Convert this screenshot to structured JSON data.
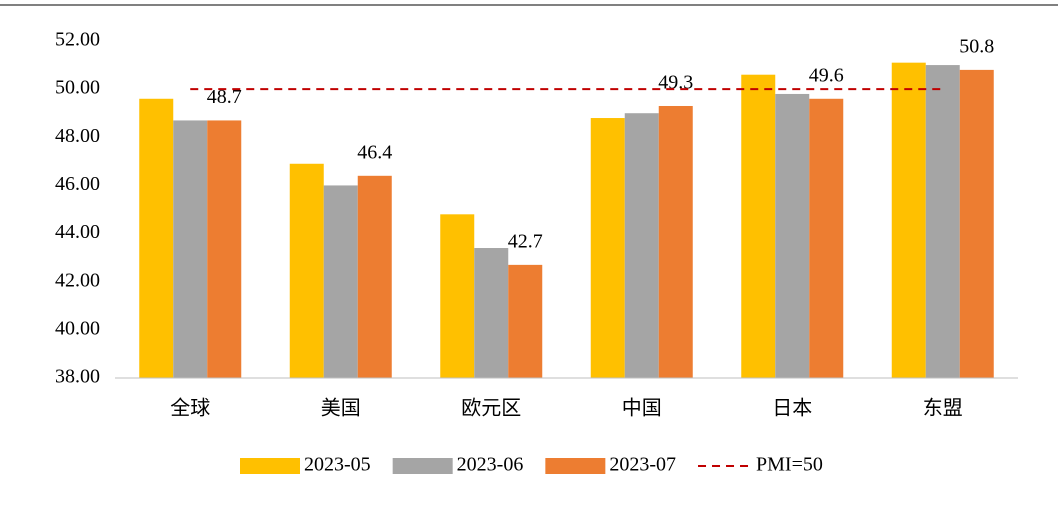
{
  "chart_data": {
    "type": "bar",
    "categories": [
      "全球",
      "美国",
      "欧元区",
      "中国",
      "日本",
      "东盟"
    ],
    "series": [
      {
        "name": "2023-05",
        "color": "#ffc000",
        "values": [
          49.6,
          46.9,
          44.8,
          48.8,
          50.6,
          51.1
        ]
      },
      {
        "name": "2023-06",
        "color": "#a5a5a5",
        "values": [
          48.7,
          46.0,
          43.4,
          49.0,
          49.8,
          51.0
        ]
      },
      {
        "name": "2023-07",
        "color": "#ed7d31",
        "values": [
          48.7,
          46.4,
          42.7,
          49.3,
          49.6,
          50.8
        ],
        "data_labels": true
      }
    ],
    "reference_lines": [
      {
        "name": "PMI=50",
        "value": 50,
        "color": "#c00000",
        "style": "dashed"
      }
    ],
    "ylim": [
      38,
      52
    ],
    "yticks": [
      {
        "value": 38,
        "label": "38.00"
      },
      {
        "value": 40,
        "label": "40.00"
      },
      {
        "value": 42,
        "label": "42.00"
      },
      {
        "value": 44,
        "label": "44.00"
      },
      {
        "value": 46,
        "label": "46.00"
      },
      {
        "value": 48,
        "label": "48.00"
      },
      {
        "value": 50,
        "label": "50.00"
      },
      {
        "value": 52,
        "label": "52.00"
      }
    ],
    "grid": false,
    "legend": "bottom"
  }
}
